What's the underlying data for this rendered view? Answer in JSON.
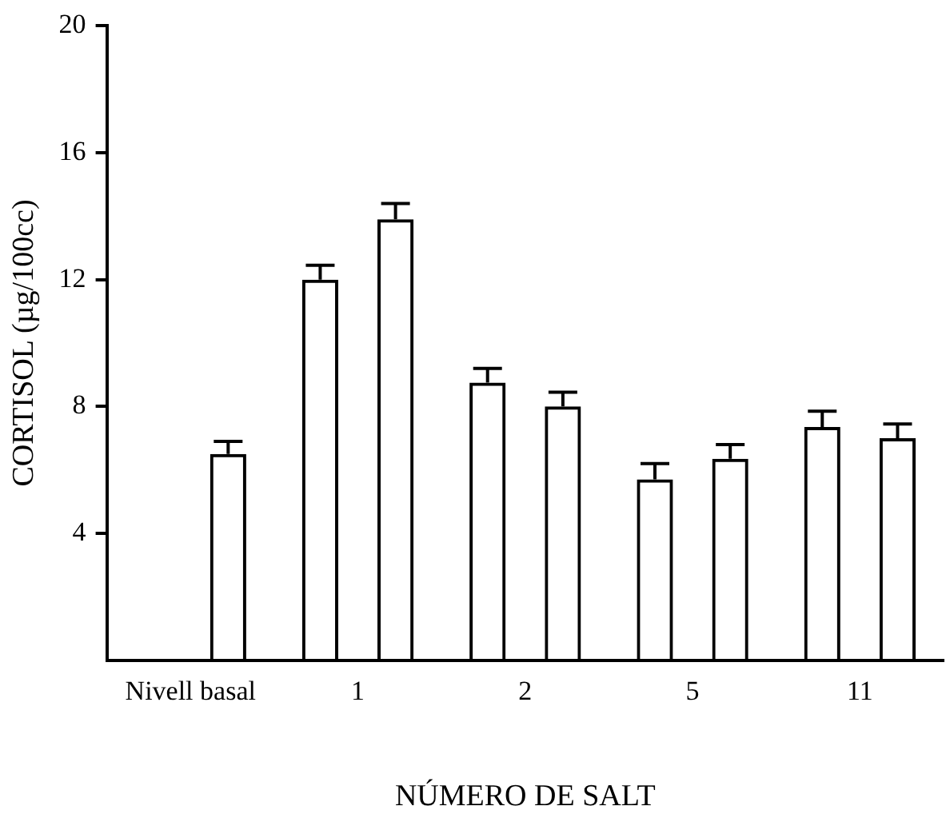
{
  "chart_data": {
    "type": "bar",
    "xlabel": "NÚMERO DE SALT",
    "ylabel": "CORTISOL (µg/100cc)",
    "categories": [
      "Nivell basal",
      "1",
      "2",
      "5",
      "11"
    ],
    "series": [
      {
        "color": "#000000",
        "values": [
          null,
          12.0,
          8.75,
          5.7,
          7.35
        ],
        "errors": [
          null,
          [
            12.0,
            12.45
          ],
          [
            8.75,
            9.2
          ],
          [
            5.7,
            6.2
          ],
          [
            7.35,
            7.85
          ]
        ]
      },
      {
        "color": "#000000",
        "values": [
          6.5,
          13.9,
          8.0,
          6.35,
          7.0
        ],
        "errors": [
          [
            6.5,
            6.9
          ],
          [
            13.9,
            14.4
          ],
          [
            8.0,
            8.45
          ],
          [
            6.35,
            6.8
          ],
          [
            7.0,
            7.45
          ]
        ]
      }
    ],
    "ylim": [
      0,
      20
    ],
    "yticks": [
      4,
      8,
      12,
      16,
      20
    ],
    "grid": false,
    "legend": false
  }
}
